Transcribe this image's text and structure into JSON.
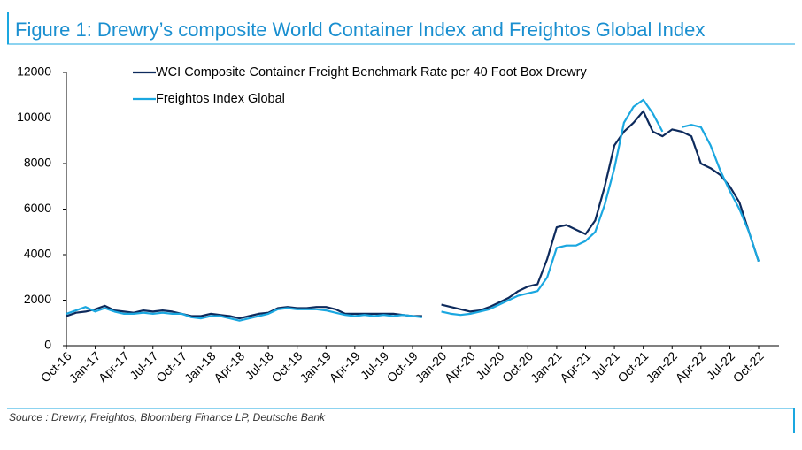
{
  "chart_data": {
    "type": "line",
    "title": "Figure 1: Drewry’s composite World Container Index and Freightos Global Index",
    "source": "Source : Drewry, Freightos, Bloomberg Finance LP, Deutsche Bank",
    "categories": [
      "Oct-16",
      null,
      null,
      "Jan-17",
      null,
      null,
      "Apr-17",
      null,
      null,
      "Jul-17",
      null,
      null,
      "Oct-17",
      null,
      null,
      "Jan-18",
      null,
      null,
      "Apr-18",
      null,
      null,
      "Jul-18",
      null,
      null,
      "Oct-18",
      null,
      null,
      "Jan-19",
      null,
      null,
      "Apr-19",
      null,
      null,
      "Jul-19",
      null,
      null,
      "Oct-19",
      null,
      null,
      "Jan-20",
      null,
      null,
      "Apr-20",
      null,
      null,
      "Jul-20",
      null,
      null,
      "Oct-20",
      null,
      null,
      "Jan-21",
      null,
      null,
      "Apr-21",
      null,
      null,
      "Jul-21",
      null,
      null,
      "Oct-21",
      null,
      null,
      "Jan-22",
      null,
      null,
      "Apr-22",
      null,
      null,
      "Jul-22",
      null,
      null,
      "Oct-22"
    ],
    "series": [
      {
        "name": "WCI Composite Container Freight Benchmark Rate per 40 Foot Box Drewry",
        "color": "#0d2a5c",
        "values": [
          1300,
          1450,
          1500,
          1600,
          1750,
          1550,
          1500,
          1450,
          1550,
          1500,
          1550,
          1500,
          1400,
          1300,
          1300,
          1400,
          1350,
          1300,
          1200,
          1300,
          1400,
          1450,
          1650,
          1700,
          1650,
          1650,
          1700,
          1700,
          1600,
          1400,
          1400,
          1400,
          1400,
          1400,
          1400,
          1350,
          1300,
          1300,
          null,
          1800,
          1700,
          1600,
          1500,
          1550,
          1700,
          1900,
          2100,
          2400,
          2600,
          2700,
          3800,
          5200,
          5300,
          5100,
          4900,
          5500,
          7000,
          8800,
          9400,
          9800,
          10300,
          9400,
          9200,
          9500,
          9400,
          9200,
          8000,
          7800,
          7500,
          7000,
          6300,
          5000,
          3700
        ]
      },
      {
        "name": "Freightos Index Global",
        "color": "#1aa7e0",
        "values": [
          1400,
          1550,
          1700,
          1500,
          1650,
          1500,
          1400,
          1400,
          1450,
          1400,
          1450,
          1400,
          1400,
          1250,
          1200,
          1300,
          1300,
          1200,
          1100,
          1200,
          1300,
          1400,
          1600,
          1650,
          1600,
          1600,
          1600,
          1550,
          1450,
          1350,
          1300,
          1350,
          1300,
          1350,
          1300,
          1350,
          1300,
          1250,
          null,
          1500,
          1400,
          1350,
          1400,
          1500,
          1600,
          1800,
          2000,
          2200,
          2300,
          2400,
          3000,
          4300,
          4400,
          4400,
          4600,
          5000,
          6200,
          7800,
          9800,
          10500,
          10800,
          10200,
          9400,
          null,
          9600,
          9700,
          9600,
          8800,
          7700,
          6800,
          6000,
          5000,
          3700
        ]
      }
    ],
    "ylim": [
      0,
      12000
    ],
    "yticks": [
      0,
      2000,
      4000,
      6000,
      8000,
      10000,
      12000
    ]
  }
}
